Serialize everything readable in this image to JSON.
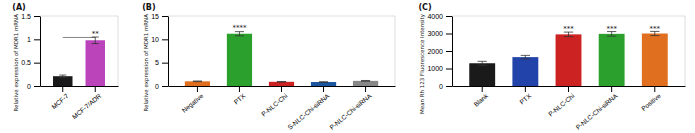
{
  "chart_data": [
    {
      "type": "bar",
      "title": "(A)",
      "categories": [
        "MCF-7",
        "MCF-7/ADR"
      ],
      "values": [
        0.21,
        0.98
      ],
      "errors": [
        0.025,
        0.07
      ],
      "colors": [
        "#1a1a1a",
        "#bb44bb"
      ],
      "ylabel": "Relative expression of MDR1 mRNA",
      "ylim": [
        0,
        1.5
      ],
      "yticks": [
        0,
        0.5,
        1,
        1.5
      ],
      "grid": false,
      "annotations": [
        {
          "text": "**",
          "x": "MCF-7/ADR",
          "y": 1.07
        }
      ],
      "brackets": [
        {
          "from": "MCF-7",
          "to": "MCF-7/ADR",
          "y": 1.04
        }
      ]
    },
    {
      "type": "bar",
      "title": "(B)",
      "categories": [
        "Negative",
        "PTX",
        "P-NLC-Chi",
        "S-NLC-Chi-siRNA",
        "P-NLC-Chi-siRNA"
      ],
      "values": [
        1.0,
        11.2,
        0.9,
        0.85,
        1.1
      ],
      "errors": [
        0.07,
        0.45,
        0.06,
        0.06,
        0.08
      ],
      "colors": [
        "#e07020",
        "#2ca02c",
        "#cc2222",
        "#1a55a0",
        "#888888"
      ],
      "ylabel": "Relative expression of MDR1 mRNA",
      "ylim": [
        0,
        15
      ],
      "yticks": [
        0,
        5,
        10,
        15
      ],
      "grid": false,
      "annotations": [
        {
          "text": "****",
          "x": "PTX",
          "y": 11.9
        }
      ]
    },
    {
      "type": "bar",
      "title": "(C)",
      "categories": [
        "Blank",
        "PTX",
        "P-NLC-Chi",
        "P-NLC-Chi-siRNA",
        "Positive"
      ],
      "values": [
        1300,
        1650,
        2950,
        2980,
        3000
      ],
      "errors": [
        110,
        100,
        130,
        130,
        120
      ],
      "colors": [
        "#1a1a1a",
        "#2244aa",
        "#cc2222",
        "#2ca02c",
        "#e07020"
      ],
      "ylabel": "Mean Rh 123 Fluorescence Intensity",
      "ylim": [
        0,
        4000
      ],
      "yticks": [
        0,
        1000,
        2000,
        3000,
        4000
      ],
      "grid": false,
      "annotations": [
        {
          "text": "***",
          "x": "P-NLC-Chi",
          "y": 3130
        },
        {
          "text": "***",
          "x": "P-NLC-Chi-siRNA",
          "y": 3160
        },
        {
          "text": "***",
          "x": "Positive",
          "y": 3170
        }
      ]
    }
  ]
}
